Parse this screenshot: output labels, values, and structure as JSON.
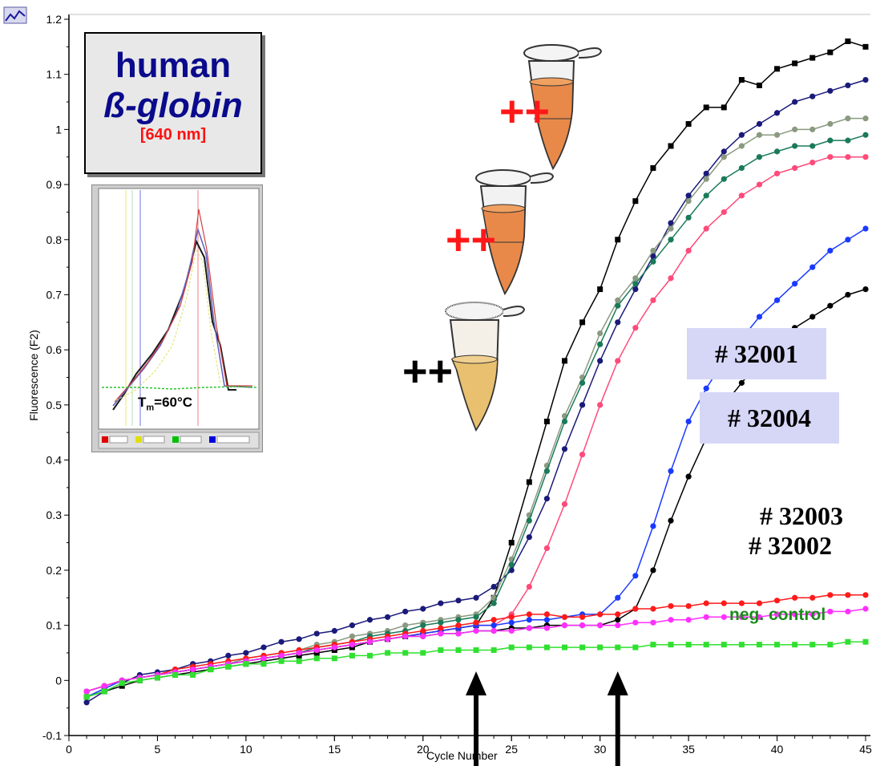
{
  "title": {
    "line1": "human",
    "line2": "ß-globin",
    "line3": "[640 nm]"
  },
  "labels": {
    "box1": "# 32001",
    "box2": "# 32004",
    "label3": "# 32003",
    "label4": "# 32002",
    "neg": "neg. control",
    "plus1": "++",
    "plus2": "++",
    "plus3": "++"
  },
  "inset": {
    "tm_label": "T",
    "tm_sub": "m",
    "tm_value": "=60°C"
  },
  "colors": {
    "black": "#000000",
    "navy": "#1a1a7a",
    "sage": "#8a9a80",
    "teal": "#1a7a5a",
    "pink": "#ff4a7a",
    "blue": "#1a3aff",
    "red": "#ff1a1a",
    "magenta": "#ff30ff",
    "green": "#30e030"
  },
  "chart_data": {
    "type": "line",
    "xlabel": "Cycle Number",
    "ylabel": "Fluorescence (F2)",
    "xlim": [
      0,
      45
    ],
    "ylim": [
      -0.1,
      1.2
    ],
    "xticks": [
      0,
      5,
      10,
      15,
      20,
      25,
      30,
      35,
      40,
      45
    ],
    "yticks": [
      -0.1,
      0,
      0.1,
      0.2,
      0.3,
      0.4,
      0.5,
      0.6,
      0.7,
      0.8,
      0.9,
      1,
      1.1,
      1.2
    ],
    "ytick_labels": [
      "-0.1",
      "0",
      "0.1",
      "0.2",
      "0.3",
      "0.4",
      "0.5",
      "0.6",
      "0.7",
      "0.8",
      "0.9",
      "1",
      "1.1",
      "1.2"
    ],
    "x": [
      1,
      2,
      3,
      4,
      5,
      6,
      7,
      8,
      9,
      10,
      11,
      12,
      13,
      14,
      15,
      16,
      17,
      18,
      19,
      20,
      21,
      22,
      23,
      24,
      25,
      26,
      27,
      28,
      29,
      30,
      31,
      32,
      33,
      34,
      35,
      36,
      37,
      38,
      39,
      40,
      41,
      42,
      43,
      44,
      45
    ],
    "series": [
      {
        "color": "#000000",
        "marker": "square",
        "values": [
          -0.03,
          -0.02,
          -0.01,
          0,
          0.005,
          0.01,
          0.015,
          0.02,
          0.025,
          0.03,
          0.035,
          0.04,
          0.045,
          0.05,
          0.055,
          0.06,
          0.07,
          0.075,
          0.08,
          0.085,
          0.09,
          0.095,
          0.1,
          0.15,
          0.25,
          0.36,
          0.47,
          0.58,
          0.65,
          0.71,
          0.8,
          0.87,
          0.93,
          0.97,
          1.01,
          1.04,
          1.04,
          1.09,
          1.08,
          1.11,
          1.12,
          1.13,
          1.14,
          1.16,
          1.15
        ]
      },
      {
        "color": "#1a1a7a",
        "marker": "circle",
        "values": [
          -0.04,
          -0.02,
          -0.005,
          0.01,
          0.015,
          0.02,
          0.03,
          0.035,
          0.045,
          0.05,
          0.06,
          0.07,
          0.075,
          0.085,
          0.09,
          0.1,
          0.11,
          0.115,
          0.125,
          0.13,
          0.14,
          0.145,
          0.15,
          0.17,
          0.2,
          0.26,
          0.33,
          0.42,
          0.5,
          0.58,
          0.65,
          0.71,
          0.77,
          0.83,
          0.88,
          0.92,
          0.96,
          0.99,
          1.01,
          1.03,
          1.05,
          1.06,
          1.07,
          1.08,
          1.09
        ]
      },
      {
        "color": "#8a9a80",
        "marker": "circle",
        "values": [
          -0.03,
          -0.015,
          0,
          0.005,
          0.01,
          0.015,
          0.02,
          0.025,
          0.03,
          0.04,
          0.045,
          0.05,
          0.055,
          0.065,
          0.07,
          0.08,
          0.085,
          0.09,
          0.1,
          0.105,
          0.11,
          0.115,
          0.12,
          0.15,
          0.22,
          0.3,
          0.39,
          0.48,
          0.55,
          0.63,
          0.69,
          0.73,
          0.78,
          0.82,
          0.87,
          0.91,
          0.95,
          0.97,
          0.99,
          0.99,
          1.0,
          1.0,
          1.01,
          1.02,
          1.02
        ]
      },
      {
        "color": "#1a7a5a",
        "marker": "circle",
        "values": [
          -0.02,
          -0.01,
          0,
          0.005,
          0.01,
          0.015,
          0.02,
          0.025,
          0.03,
          0.035,
          0.04,
          0.045,
          0.05,
          0.06,
          0.065,
          0.07,
          0.08,
          0.085,
          0.09,
          0.1,
          0.105,
          0.11,
          0.115,
          0.14,
          0.21,
          0.29,
          0.38,
          0.47,
          0.54,
          0.61,
          0.68,
          0.72,
          0.76,
          0.8,
          0.84,
          0.88,
          0.91,
          0.93,
          0.95,
          0.96,
          0.97,
          0.97,
          0.98,
          0.98,
          0.99
        ]
      },
      {
        "color": "#ff4a7a",
        "marker": "circle",
        "values": [
          -0.02,
          -0.01,
          0,
          0.005,
          0.01,
          0.015,
          0.02,
          0.025,
          0.03,
          0.035,
          0.04,
          0.045,
          0.05,
          0.055,
          0.06,
          0.065,
          0.07,
          0.075,
          0.08,
          0.085,
          0.09,
          0.095,
          0.1,
          0.1,
          0.12,
          0.17,
          0.24,
          0.32,
          0.41,
          0.5,
          0.58,
          0.64,
          0.69,
          0.73,
          0.78,
          0.82,
          0.85,
          0.88,
          0.9,
          0.92,
          0.93,
          0.94,
          0.95,
          0.95,
          0.95
        ]
      },
      {
        "color": "#1a3aff",
        "marker": "circle",
        "values": [
          -0.03,
          -0.015,
          0,
          0.005,
          0.01,
          0.015,
          0.02,
          0.025,
          0.03,
          0.035,
          0.04,
          0.045,
          0.05,
          0.055,
          0.06,
          0.065,
          0.07,
          0.075,
          0.08,
          0.085,
          0.09,
          0.095,
          0.1,
          0.1,
          0.105,
          0.11,
          0.11,
          0.115,
          0.12,
          0.12,
          0.15,
          0.19,
          0.28,
          0.38,
          0.47,
          0.53,
          0.58,
          0.62,
          0.66,
          0.69,
          0.72,
          0.75,
          0.78,
          0.8,
          0.82
        ]
      },
      {
        "color": "#000000",
        "marker": "circle",
        "values": [
          -0.02,
          -0.01,
          0,
          0.005,
          0.01,
          0.015,
          0.02,
          0.025,
          0.03,
          0.035,
          0.04,
          0.045,
          0.05,
          0.055,
          0.06,
          0.065,
          0.07,
          0.075,
          0.08,
          0.08,
          0.085,
          0.085,
          0.09,
          0.09,
          0.095,
          0.095,
          0.1,
          0.1,
          0.1,
          0.1,
          0.11,
          0.13,
          0.2,
          0.29,
          0.37,
          0.44,
          0.5,
          0.54,
          0.58,
          0.61,
          0.64,
          0.66,
          0.68,
          0.7,
          0.71
        ]
      },
      {
        "color": "#ff1a1a",
        "marker": "circle",
        "values": [
          -0.02,
          -0.01,
          0,
          0.005,
          0.01,
          0.02,
          0.025,
          0.03,
          0.035,
          0.04,
          0.045,
          0.05,
          0.055,
          0.06,
          0.065,
          0.07,
          0.075,
          0.08,
          0.085,
          0.09,
          0.095,
          0.1,
          0.105,
          0.11,
          0.115,
          0.12,
          0.12,
          0.115,
          0.115,
          0.12,
          0.12,
          0.13,
          0.13,
          0.135,
          0.135,
          0.14,
          0.14,
          0.14,
          0.14,
          0.145,
          0.15,
          0.15,
          0.155,
          0.155,
          0.155
        ]
      },
      {
        "color": "#ff30ff",
        "marker": "circle",
        "values": [
          -0.02,
          -0.01,
          0,
          0.005,
          0.01,
          0.015,
          0.02,
          0.025,
          0.03,
          0.035,
          0.04,
          0.045,
          0.05,
          0.055,
          0.06,
          0.065,
          0.07,
          0.075,
          0.08,
          0.08,
          0.085,
          0.085,
          0.09,
          0.09,
          0.09,
          0.095,
          0.095,
          0.1,
          0.1,
          0.1,
          0.1,
          0.105,
          0.105,
          0.11,
          0.11,
          0.115,
          0.115,
          0.115,
          0.115,
          0.12,
          0.12,
          0.12,
          0.125,
          0.125,
          0.13
        ]
      },
      {
        "color": "#30e030",
        "marker": "square",
        "values": [
          -0.03,
          -0.02,
          -0.005,
          0,
          0.005,
          0.01,
          0.01,
          0.02,
          0.025,
          0.03,
          0.03,
          0.035,
          0.035,
          0.04,
          0.04,
          0.045,
          0.045,
          0.05,
          0.05,
          0.05,
          0.055,
          0.055,
          0.055,
          0.055,
          0.06,
          0.06,
          0.06,
          0.06,
          0.06,
          0.06,
          0.06,
          0.06,
          0.065,
          0.065,
          0.065,
          0.065,
          0.065,
          0.065,
          0.065,
          0.065,
          0.065,
          0.065,
          0.065,
          0.07,
          0.07
        ]
      }
    ],
    "arrows_at_cycle": [
      23,
      31
    ]
  }
}
